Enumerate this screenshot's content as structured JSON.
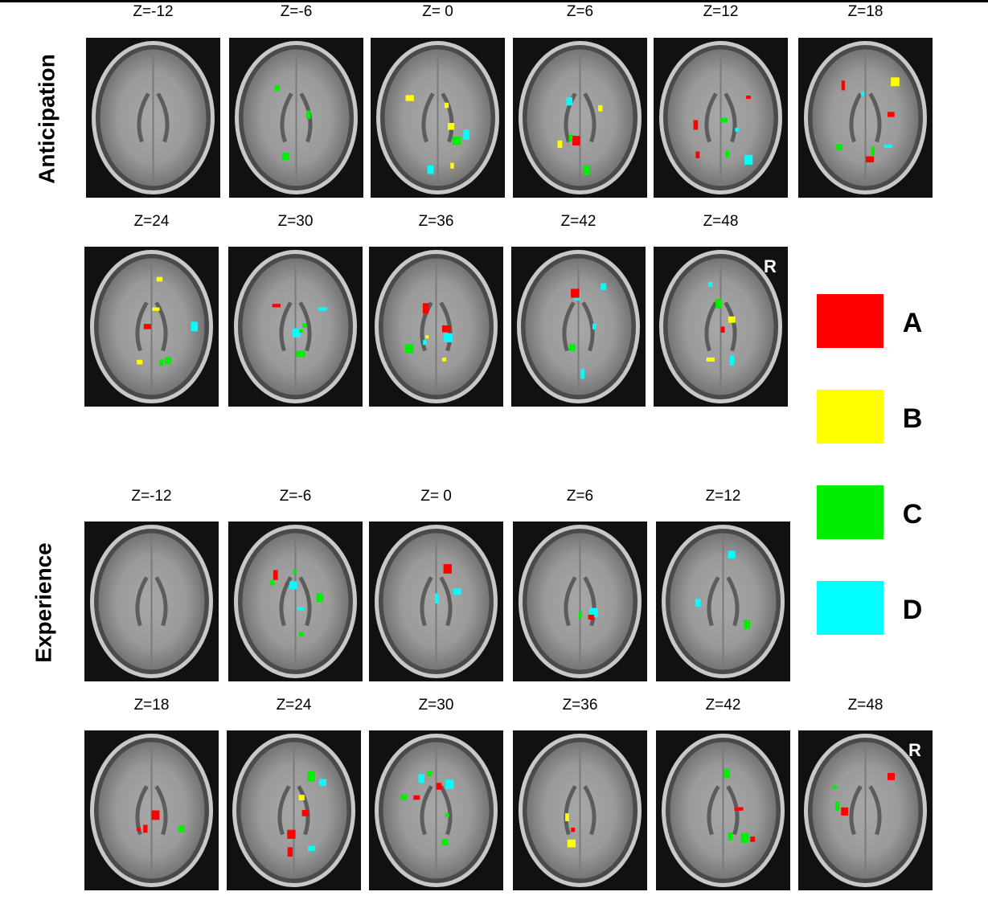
{
  "panels": [
    {
      "label": "Anticipation",
      "rows": [
        [
          {
            "z": "Z=-12"
          },
          {
            "z": "Z=-6"
          },
          {
            "z": "Z= 0"
          },
          {
            "z": "Z=6"
          },
          {
            "z": "Z=12"
          },
          {
            "z": "Z=18"
          }
        ],
        [
          {
            "z": "Z=24"
          },
          {
            "z": "Z=30"
          },
          {
            "z": "Z=36"
          },
          {
            "z": "Z=42"
          },
          {
            "z": "Z=48",
            "marker": "R"
          }
        ]
      ]
    },
    {
      "label": "Experience",
      "rows": [
        [
          {
            "z": "Z=-12"
          },
          {
            "z": "Z=-6"
          },
          {
            "z": "Z= 0"
          },
          {
            "z": "Z=6"
          },
          {
            "z": "Z=12"
          }
        ],
        [
          {
            "z": "Z=18"
          },
          {
            "z": "Z=24"
          },
          {
            "z": "Z=30"
          },
          {
            "z": "Z=36"
          },
          {
            "z": "Z=42"
          },
          {
            "z": "Z=48",
            "marker": "R"
          }
        ]
      ]
    }
  ],
  "legend": [
    {
      "label": "A",
      "color": "#ff0000"
    },
    {
      "label": "B",
      "color": "#ffff00"
    },
    {
      "label": "C",
      "color": "#00ee00"
    },
    {
      "label": "D",
      "color": "#00ffff"
    }
  ]
}
